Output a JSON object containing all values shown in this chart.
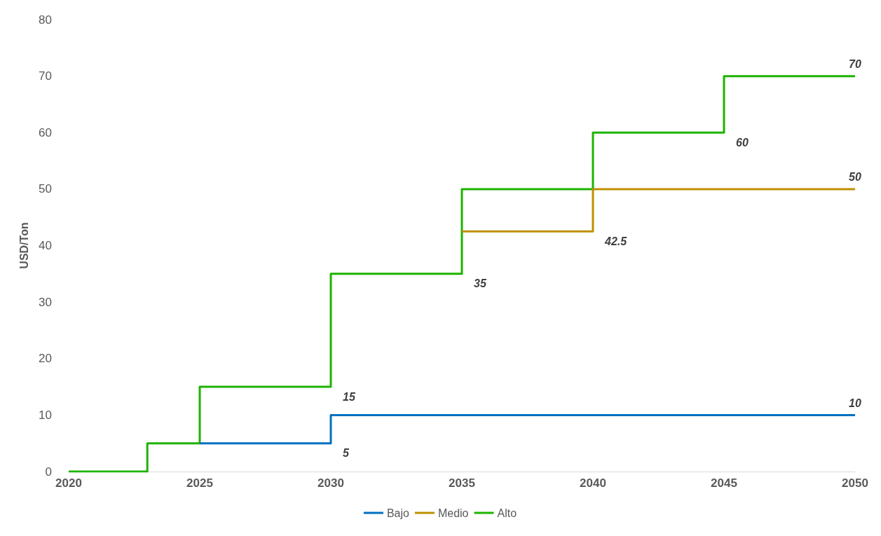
{
  "chart_data": {
    "type": "step",
    "ylabel": "USD/Ton",
    "xlim": [
      2020,
      2050
    ],
    "xticks": [
      2020,
      2025,
      2030,
      2035,
      2040,
      2045,
      2050
    ],
    "ylim": [
      0,
      80
    ],
    "yticks": [
      0,
      10,
      20,
      30,
      40,
      50,
      60,
      70,
      80
    ],
    "grid": false,
    "legend": "bottom",
    "series": [
      {
        "name": "Bajo",
        "color": "#0070c0",
        "x": [
          2025,
          2030,
          2050
        ],
        "values": [
          5,
          5,
          10
        ],
        "value_labels": [
          null,
          "5",
          "10"
        ]
      },
      {
        "name": "Medio",
        "color": "#bf9000",
        "x": [
          2035,
          2040,
          2050
        ],
        "values": [
          42.5,
          42.5,
          50
        ],
        "value_labels": [
          null,
          "42.5",
          "50"
        ]
      },
      {
        "name": "Alto",
        "color": "#1db300",
        "x": [
          2020,
          2023,
          2025,
          2030,
          2035,
          2040,
          2045,
          2050
        ],
        "values": [
          0,
          0,
          5,
          15,
          35,
          50,
          60,
          70
        ],
        "value_labels": [
          null,
          null,
          null,
          "15",
          "35",
          null,
          "60",
          "70"
        ]
      }
    ]
  }
}
